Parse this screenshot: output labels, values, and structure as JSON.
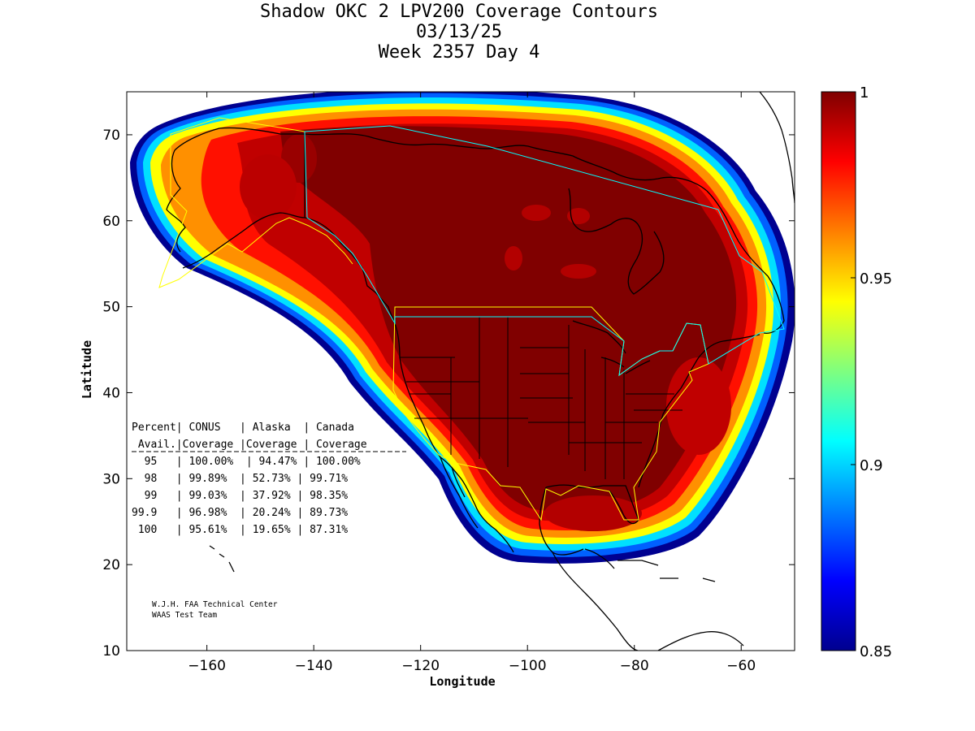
{
  "title": {
    "line1": "Shadow OKC 2 LPV200 Coverage Contours",
    "line2": "03/13/25",
    "line3": "Week 2357 Day 4"
  },
  "axes": {
    "xlabel": "Longitude",
    "ylabel": "Latitude",
    "x_ticks": [
      -160,
      -140,
      -120,
      -100,
      -80,
      -60
    ],
    "y_ticks": [
      10,
      20,
      30,
      40,
      50,
      60,
      70
    ],
    "xlim": [
      -175,
      -50
    ],
    "ylim": [
      10,
      75
    ]
  },
  "colorbar": {
    "ticks": [
      "1",
      "0.95",
      "0.9",
      "0.85"
    ],
    "range": [
      0.85,
      1
    ],
    "colormap": "jet",
    "stops": [
      "#00008f",
      "#0000ff",
      "#007fff",
      "#00ffff",
      "#7fff7f",
      "#ffff00",
      "#ff7f00",
      "#ff0000",
      "#7f0000"
    ]
  },
  "stats_table": {
    "header1": "Percent| CONUS   | Alaska  | Canada",
    "header2": " Avail.|Coverage |Coverage | Coverage",
    "rows": [
      "  95   | 100.00%  | 94.47% | 100.00%",
      "  98   | 99.89%  | 52.73% | 99.71%",
      "  99   | 99.03%  | 37.92% | 98.35%",
      "99.9   | 96.98%  | 20.24% | 89.73%",
      " 100   | 95.61%  | 19.65% | 87.31%"
    ]
  },
  "credit": {
    "line1": "W.J.H. FAA Technical Center",
    "line2": "WAAS Test Team"
  },
  "colors": {
    "core": "#800000",
    "boundary_conus": "#ffff00",
    "boundary_canada": "#00ffff"
  }
}
